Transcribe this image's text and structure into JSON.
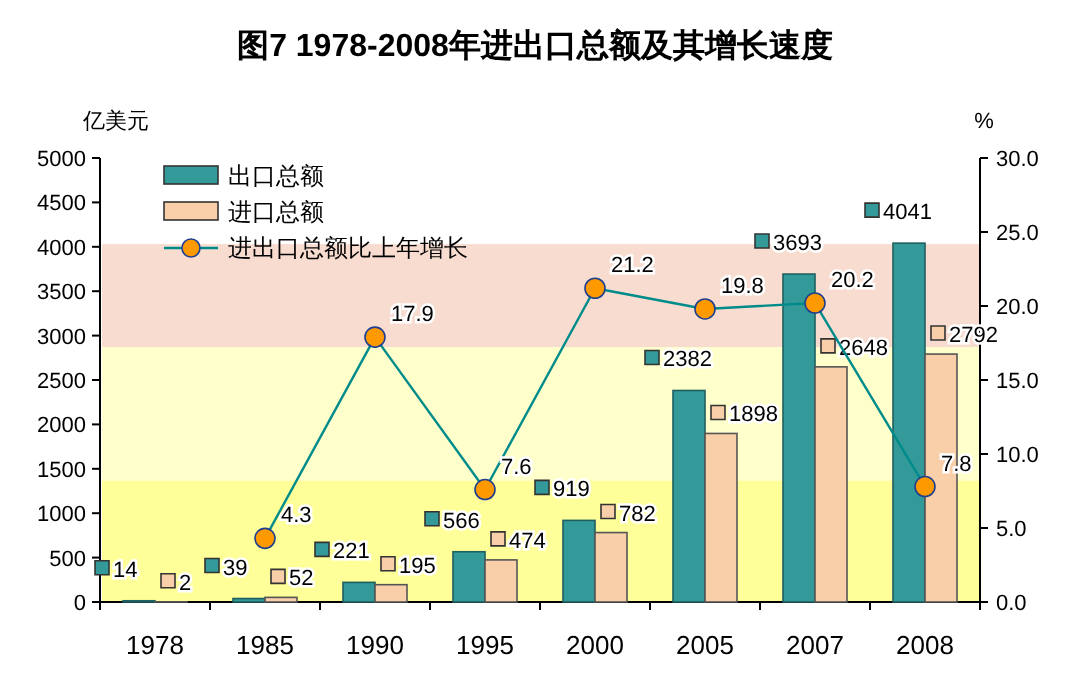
{
  "chart_data": {
    "type": "bar",
    "title": "图7 1978-2008年进出口总额及其增长速度",
    "ylabel": "亿美元",
    "y2label": "%",
    "categories": [
      "1978",
      "1985",
      "1990",
      "1995",
      "2000",
      "2005",
      "2007",
      "2008"
    ],
    "series": [
      {
        "name": "出口总额",
        "color": "#339999",
        "values": [
          14,
          39,
          221,
          566,
          919,
          2382,
          3693,
          4041
        ]
      },
      {
        "name": "进口总额",
        "color": "#f8cfa8",
        "values": [
          2,
          52,
          195,
          474,
          782,
          1898,
          2648,
          2792
        ]
      },
      {
        "name": "进出口总额比上年增长",
        "type": "line",
        "axis": "y2",
        "color": "#ff9900",
        "marker": "circle",
        "values": [
          null,
          4.3,
          17.9,
          7.6,
          21.2,
          19.8,
          20.2,
          7.8
        ]
      }
    ],
    "ylim": [
      0,
      5000
    ],
    "yticks": [
      0,
      500,
      1000,
      1500,
      2000,
      2500,
      3000,
      3500,
      4000,
      4500,
      5000
    ],
    "y2lim": [
      0,
      30
    ],
    "y2ticks": [
      {
        "value": 0,
        "label": "0.0"
      },
      {
        "value": 5,
        "label": "5.0"
      },
      {
        "value": 10,
        "label": "10.0"
      },
      {
        "value": 15,
        "label": "15.0"
      },
      {
        "value": 20,
        "label": "20.0"
      },
      {
        "value": 25,
        "label": "25.0"
      },
      {
        "value": 30,
        "label": "30.0"
      }
    ],
    "bands": [
      {
        "axis": "y",
        "from": 0,
        "to": 1370,
        "color": "#ffff99"
      },
      {
        "axis": "y",
        "from": 1370,
        "to": 2870,
        "color": "#ffffcc"
      },
      {
        "axis": "y",
        "from": 2870,
        "to": 4030,
        "color": "#f8dcd0"
      }
    ],
    "data_labels": true,
    "legend": "top left",
    "grid": false
  }
}
